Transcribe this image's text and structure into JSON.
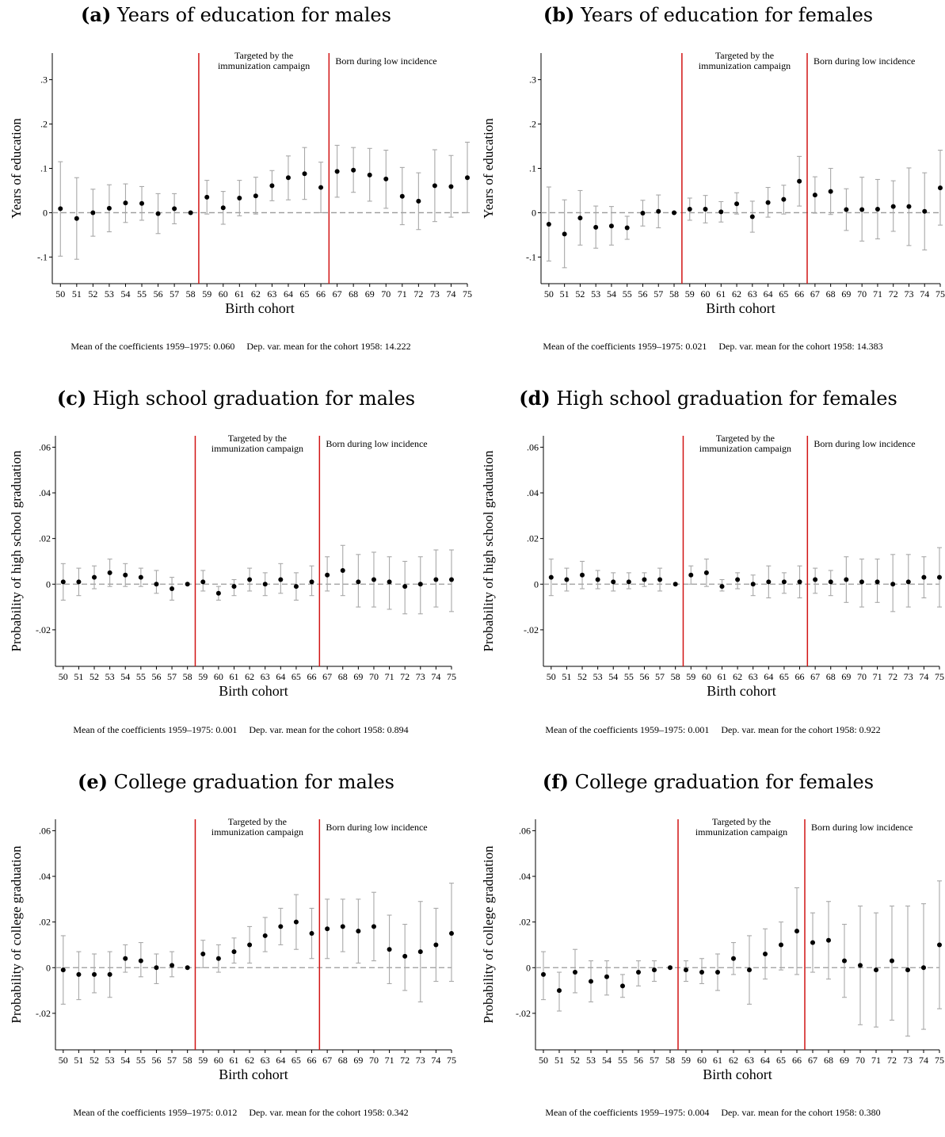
{
  "footnote_left_prefix": "Mean of the coefficients 1959–1975: ",
  "footnote_right_prefix": "Dep. var. mean for the cohort 1958: ",
  "chart_data": [
    {
      "type": "scatter",
      "panel": "(a)",
      "title": "Years of education for males",
      "xlabel": "Birth cohort",
      "ylabel": "Years of education",
      "ylim": [
        -0.16,
        0.36
      ],
      "yticks": [
        -0.1,
        0,
        0.1,
        0.2,
        0.3
      ],
      "ytick_labels": [
        "-.1",
        "0",
        ".1",
        ".2",
        ".3"
      ],
      "x": [
        "50",
        "51",
        "52",
        "53",
        "54",
        "55",
        "56",
        "57",
        "58",
        "59",
        "60",
        "61",
        "62",
        "63",
        "64",
        "65",
        "66",
        "67",
        "68",
        "69",
        "70",
        "71",
        "72",
        "73",
        "74",
        "75"
      ],
      "values": [
        0.009,
        -0.013,
        0,
        0.01,
        0.022,
        0.021,
        -0.002,
        0.009,
        0,
        0.035,
        0.011,
        0.033,
        0.038,
        0.061,
        0.079,
        0.088,
        0.057,
        0.093,
        0.096,
        0.085,
        0.076,
        0.037,
        0.026,
        0.061,
        0.059,
        0.079
      ],
      "ci_low": [
        -0.098,
        -0.105,
        -0.053,
        -0.043,
        -0.022,
        -0.017,
        -0.047,
        -0.025,
        0,
        -0.003,
        -0.026,
        -0.007,
        -0.003,
        0.027,
        0.029,
        0.03,
        0,
        0.035,
        0.046,
        0.026,
        0.01,
        -0.027,
        -0.038,
        -0.02,
        -0.01,
        0
      ],
      "ci_high": [
        0.115,
        0.079,
        0.053,
        0.063,
        0.065,
        0.059,
        0.043,
        0.043,
        0,
        0.073,
        0.048,
        0.073,
        0.08,
        0.095,
        0.128,
        0.147,
        0.114,
        0.152,
        0.147,
        0.145,
        0.141,
        0.102,
        0.09,
        0.142,
        0.129,
        0.159
      ],
      "regions": [
        {
          "label": "Targeted by the\nimmunization campaign",
          "x_start": "58",
          "x_end": "66"
        },
        {
          "label": "Born during low incidence",
          "x_start": "66",
          "x_end": "75"
        }
      ],
      "vlines_after": [
        "58",
        "66"
      ],
      "mean_coef": "0.060",
      "dep_mean": "14.222"
    },
    {
      "type": "scatter",
      "panel": "(b)",
      "title": "Years of education for females",
      "xlabel": "Birth cohort",
      "ylabel": "Years of education",
      "ylim": [
        -0.16,
        0.36
      ],
      "yticks": [
        -0.1,
        0,
        0.1,
        0.2,
        0.3
      ],
      "ytick_labels": [
        "-.1",
        "0",
        ".1",
        ".2",
        ".3"
      ],
      "x": [
        "50",
        "51",
        "52",
        "53",
        "54",
        "55",
        "56",
        "57",
        "58",
        "59",
        "60",
        "61",
        "62",
        "63",
        "64",
        "65",
        "66",
        "67",
        "68",
        "69",
        "70",
        "71",
        "72",
        "73",
        "74",
        "75"
      ],
      "values": [
        -0.026,
        -0.048,
        -0.012,
        -0.033,
        -0.03,
        -0.034,
        -0.001,
        0.003,
        0,
        0.008,
        0.008,
        0.002,
        0.02,
        -0.009,
        0.023,
        0.03,
        0.071,
        0.04,
        0.048,
        0.007,
        0.007,
        0.008,
        0.014,
        0.014,
        0.003,
        0.056
      ],
      "ci_low": [
        -0.109,
        -0.124,
        -0.073,
        -0.08,
        -0.073,
        -0.06,
        -0.03,
        -0.034,
        0,
        -0.017,
        -0.023,
        -0.021,
        -0.003,
        -0.044,
        -0.01,
        -0.003,
        0.015,
        -0.001,
        -0.004,
        -0.04,
        -0.064,
        -0.059,
        -0.042,
        -0.074,
        -0.084,
        -0.028
      ],
      "ci_high": [
        0.058,
        0.029,
        0.05,
        0.015,
        0.014,
        -0.008,
        0.028,
        0.04,
        0,
        0.033,
        0.039,
        0.025,
        0.045,
        0.026,
        0.057,
        0.062,
        0.127,
        0.081,
        0.1,
        0.054,
        0.08,
        0.075,
        0.072,
        0.101,
        0.09,
        0.141
      ],
      "regions": [
        {
          "label": "Targeted by the\nimmunization campaign",
          "x_start": "58",
          "x_end": "66"
        },
        {
          "label": "Born during low incidence",
          "x_start": "66",
          "x_end": "75"
        }
      ],
      "vlines_after": [
        "58",
        "66"
      ],
      "mean_coef": "0.021",
      "dep_mean": "14.383"
    },
    {
      "type": "scatter",
      "panel": "(c)",
      "title": "High school graduation for males",
      "xlabel": "Birth cohort",
      "ylabel": "Probability of high school graduation",
      "ylim": [
        -0.036,
        0.065
      ],
      "yticks": [
        -0.02,
        0,
        0.02,
        0.04,
        0.06
      ],
      "ytick_labels": [
        "-.02",
        "0",
        ".02",
        ".04",
        ".06"
      ],
      "x": [
        "50",
        "51",
        "52",
        "53",
        "54",
        "55",
        "56",
        "57",
        "58",
        "59",
        "60",
        "61",
        "62",
        "63",
        "64",
        "65",
        "66",
        "67",
        "68",
        "69",
        "70",
        "71",
        "72",
        "73",
        "74",
        "75"
      ],
      "values": [
        0.001,
        0.001,
        0.003,
        0.005,
        0.004,
        0.003,
        0,
        -0.002,
        0,
        0.001,
        -0.004,
        -0.001,
        0.002,
        0,
        0.002,
        -0.001,
        0.001,
        0.004,
        0.006,
        0.001,
        0.002,
        0.001,
        -0.001,
        0,
        0.002,
        0.002
      ],
      "ci_low": [
        -0.007,
        -0.005,
        -0.002,
        -0.001,
        -0.001,
        -0.001,
        -0.004,
        -0.007,
        0,
        -0.003,
        -0.007,
        -0.005,
        -0.003,
        -0.005,
        -0.004,
        -0.007,
        -0.005,
        -0.003,
        -0.005,
        -0.01,
        -0.01,
        -0.011,
        -0.013,
        -0.013,
        -0.01,
        -0.012
      ],
      "ci_high": [
        0.009,
        0.007,
        0.008,
        0.011,
        0.009,
        0.007,
        0.006,
        0.003,
        0,
        0.006,
        -0.001,
        0.002,
        0.007,
        0.005,
        0.009,
        0.005,
        0.008,
        0.012,
        0.017,
        0.013,
        0.014,
        0.012,
        0.01,
        0.012,
        0.015,
        0.015
      ],
      "regions": [
        {
          "label": "Targeted by the\nimmunization campaign",
          "x_start": "58",
          "x_end": "66"
        },
        {
          "label": "Born during low incidence",
          "x_start": "66",
          "x_end": "75"
        }
      ],
      "vlines_after": [
        "58",
        "66"
      ],
      "mean_coef": "0.001",
      "dep_mean": "0.894"
    },
    {
      "type": "scatter",
      "panel": "(d)",
      "title": "High school graduation for females",
      "xlabel": "Birth cohort",
      "ylabel": "Probability of high school graduation",
      "ylim": [
        -0.036,
        0.065
      ],
      "yticks": [
        -0.02,
        0,
        0.02,
        0.04,
        0.06
      ],
      "ytick_labels": [
        "-.02",
        "0",
        ".02",
        ".04",
        ".06"
      ],
      "x": [
        "50",
        "51",
        "52",
        "53",
        "54",
        "55",
        "56",
        "57",
        "58",
        "59",
        "60",
        "61",
        "62",
        "63",
        "64",
        "65",
        "66",
        "67",
        "68",
        "69",
        "70",
        "71",
        "72",
        "73",
        "74",
        "75"
      ],
      "values": [
        0.003,
        0.002,
        0.004,
        0.002,
        0.001,
        0.001,
        0.002,
        0.002,
        0,
        0.004,
        0.005,
        -0.001,
        0.002,
        0,
        0.001,
        0.001,
        0.001,
        0.002,
        0.001,
        0.002,
        0.001,
        0.001,
        0,
        0.001,
        0.003,
        0.003
      ],
      "ci_low": [
        -0.005,
        -0.003,
        -0.002,
        -0.002,
        -0.003,
        -0.002,
        -0.001,
        -0.003,
        0,
        0,
        -0.001,
        -0.003,
        -0.002,
        -0.005,
        -0.006,
        -0.004,
        -0.006,
        -0.004,
        -0.005,
        -0.008,
        -0.01,
        -0.008,
        -0.012,
        -0.01,
        -0.006,
        -0.01
      ],
      "ci_high": [
        0.011,
        0.007,
        0.01,
        0.006,
        0.005,
        0.005,
        0.005,
        0.007,
        0,
        0.008,
        0.011,
        0.002,
        0.005,
        0.004,
        0.008,
        0.005,
        0.008,
        0.007,
        0.006,
        0.012,
        0.011,
        0.011,
        0.013,
        0.013,
        0.012,
        0.016
      ],
      "regions": [
        {
          "label": "Targeted by the\nimmunization campaign",
          "x_start": "58",
          "x_end": "66"
        },
        {
          "label": "Born during low incidence",
          "x_start": "66",
          "x_end": "75"
        }
      ],
      "vlines_after": [
        "58",
        "66"
      ],
      "mean_coef": "0.001",
      "dep_mean": "0.922"
    },
    {
      "type": "scatter",
      "panel": "(e)",
      "title": "College graduation for males",
      "xlabel": "Birth cohort",
      "ylabel": "Probability of college graduation",
      "ylim": [
        -0.036,
        0.065
      ],
      "yticks": [
        -0.02,
        0,
        0.02,
        0.04,
        0.06
      ],
      "ytick_labels": [
        "-.02",
        "0",
        ".02",
        ".04",
        ".06"
      ],
      "x": [
        "50",
        "51",
        "52",
        "53",
        "54",
        "55",
        "56",
        "57",
        "58",
        "59",
        "60",
        "61",
        "62",
        "63",
        "64",
        "65",
        "66",
        "67",
        "68",
        "69",
        "70",
        "71",
        "72",
        "73",
        "74",
        "75"
      ],
      "values": [
        -0.001,
        -0.003,
        -0.003,
        -0.003,
        0.004,
        0.003,
        0,
        0.001,
        0,
        0.006,
        0.004,
        0.007,
        0.01,
        0.014,
        0.018,
        0.02,
        0.015,
        0.017,
        0.018,
        0.016,
        0.018,
        0.008,
        0.005,
        0.007,
        0.01,
        0.015
      ],
      "ci_low": [
        -0.016,
        -0.014,
        -0.011,
        -0.013,
        -0.002,
        -0.004,
        -0.007,
        -0.004,
        0,
        0,
        -0.002,
        0.002,
        0.002,
        0.007,
        0.01,
        0.008,
        0.004,
        0.004,
        0.007,
        0.002,
        0.003,
        -0.007,
        -0.01,
        -0.015,
        -0.006,
        -0.006
      ],
      "ci_high": [
        0.014,
        0.007,
        0.006,
        0.007,
        0.01,
        0.011,
        0.006,
        0.007,
        0,
        0.012,
        0.01,
        0.013,
        0.018,
        0.022,
        0.026,
        0.032,
        0.026,
        0.03,
        0.03,
        0.03,
        0.033,
        0.023,
        0.019,
        0.029,
        0.026,
        0.037
      ],
      "regions": [
        {
          "label": "Targeted by the\nimmunization campaign",
          "x_start": "58",
          "x_end": "66"
        },
        {
          "label": "Born during low incidence",
          "x_start": "66",
          "x_end": "75"
        }
      ],
      "vlines_after": [
        "58",
        "66"
      ],
      "mean_coef": "0.012",
      "dep_mean": "0.342"
    },
    {
      "type": "scatter",
      "panel": "(f)",
      "title": "College graduation for females",
      "xlabel": "Birth cohort",
      "ylabel": "Probability of college graduation",
      "ylim": [
        -0.036,
        0.065
      ],
      "yticks": [
        -0.02,
        0,
        0.02,
        0.04,
        0.06
      ],
      "ytick_labels": [
        "-.02",
        "0",
        ".02",
        ".04",
        ".06"
      ],
      "x": [
        "50",
        "51",
        "52",
        "53",
        "54",
        "55",
        "56",
        "57",
        "58",
        "59",
        "60",
        "61",
        "62",
        "63",
        "64",
        "65",
        "66",
        "67",
        "68",
        "69",
        "70",
        "71",
        "72",
        "73",
        "74",
        "75"
      ],
      "values": [
        -0.003,
        -0.01,
        -0.002,
        -0.006,
        -0.004,
        -0.008,
        -0.002,
        -0.001,
        0,
        -0.001,
        -0.002,
        -0.002,
        0.004,
        -0.001,
        0.006,
        0.01,
        0.016,
        0.011,
        0.012,
        0.003,
        0.001,
        -0.001,
        0.003,
        -0.001,
        0,
        0.01
      ],
      "ci_low": [
        -0.014,
        -0.019,
        -0.011,
        -0.015,
        -0.012,
        -0.013,
        -0.008,
        -0.006,
        0,
        -0.006,
        -0.007,
        -0.01,
        -0.003,
        -0.016,
        -0.005,
        -0.001,
        -0.003,
        -0.002,
        -0.005,
        -0.013,
        -0.025,
        -0.026,
        -0.023,
        -0.03,
        -0.027,
        -0.018
      ],
      "ci_high": [
        0.007,
        -0.002,
        0.008,
        0.003,
        0.003,
        -0.003,
        0.003,
        0.003,
        0,
        0.003,
        0.004,
        0.006,
        0.011,
        0.014,
        0.017,
        0.02,
        0.035,
        0.024,
        0.029,
        0.019,
        0.027,
        0.024,
        0.027,
        0.027,
        0.028,
        0.038
      ],
      "regions": [
        {
          "label": "Targeted by the\nimmunization campaign",
          "x_start": "58",
          "x_end": "66"
        },
        {
          "label": "Born during low incidence",
          "x_start": "66",
          "x_end": "75"
        }
      ],
      "vlines_after": [
        "58",
        "66"
      ],
      "mean_coef": "0.004",
      "dep_mean": "0.380"
    }
  ]
}
